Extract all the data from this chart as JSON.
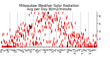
{
  "title": "Milwaukee Weather Solar Radiation",
  "subtitle": "Avg per Day W/m2/minute",
  "bg_color": "#ffffff",
  "dot_color": "#dd0000",
  "black_color": "#000000",
  "grid_color": "#888888",
  "ylim": [
    0,
    9
  ],
  "ytick_vals": [
    2,
    4,
    6,
    8
  ],
  "ytick_labels": [
    "2",
    "4",
    "6",
    "8"
  ],
  "num_points": 365,
  "seed": 42,
  "title_fontsize": 3.5,
  "tick_fontsize": 3.0
}
